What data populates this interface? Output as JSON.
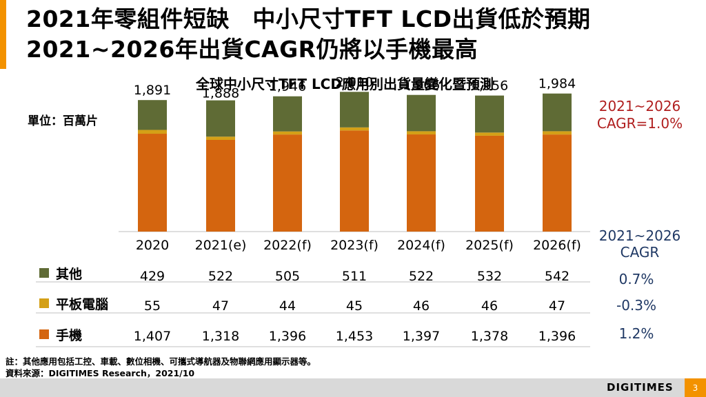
{
  "header": {
    "title_line1": "2021年零組件短缺　中小尺寸TFT LCD出貨低於預期",
    "title_line2": "2021~2026年出貨CAGR仍將以手機最高",
    "accent_color": "#f39200"
  },
  "unit_label": "單位：百萬片",
  "cagr_overall": {
    "line1": "2021~2026",
    "line2": "CAGR=1.0%",
    "color": "#b01e1e"
  },
  "cagr_column": {
    "header_line1": "2021~2026",
    "header_line2": "CAGR",
    "color": "#1f3864",
    "values": [
      "0.7%",
      "-0.3%",
      "1.2%"
    ]
  },
  "legend": {
    "others": "其他",
    "tablet": "平板電腦",
    "phone": "手機"
  },
  "chart_data": {
    "type": "bar",
    "stacked": true,
    "title": "全球中小尺寸TFT LCD應用別出貨量變化暨預測",
    "categories": [
      "2020",
      "2021(e)",
      "2022(f)",
      "2023(f)",
      "2024(f)",
      "2025(f)",
      "2026(f)"
    ],
    "series": [
      {
        "name": "手機",
        "color": "#d4650f",
        "values": [
          1407,
          1318,
          1396,
          1453,
          1397,
          1378,
          1396
        ],
        "labels": [
          "1,407",
          "1,318",
          "1,396",
          "1,453",
          "1,397",
          "1,378",
          "1,396"
        ]
      },
      {
        "name": "平板電腦",
        "color": "#d4a017",
        "values": [
          55,
          47,
          44,
          45,
          46,
          46,
          47
        ],
        "labels": [
          "55",
          "47",
          "44",
          "45",
          "46",
          "46",
          "47"
        ]
      },
      {
        "name": "其他",
        "color": "#5f6b35",
        "values": [
          429,
          522,
          505,
          511,
          522,
          532,
          542
        ],
        "labels": [
          "429",
          "522",
          "505",
          "511",
          "522",
          "532",
          "542"
        ]
      }
    ],
    "totals": [
      "1,891",
      "1,888",
      "1,946",
      "2,010",
      "1,966",
      "1,956",
      "1,984"
    ],
    "ylim": [
      0,
      2200
    ]
  },
  "notes": {
    "note": "註：其他應用包括工控、車載、數位相機、可攜式導航器及物聯網應用顯示器等。",
    "source": "資料來源：DIGITIMES Research，2021/10"
  },
  "footer": {
    "logo": "DIGITIMES",
    "page": "3",
    "page_color": "#f39200"
  }
}
